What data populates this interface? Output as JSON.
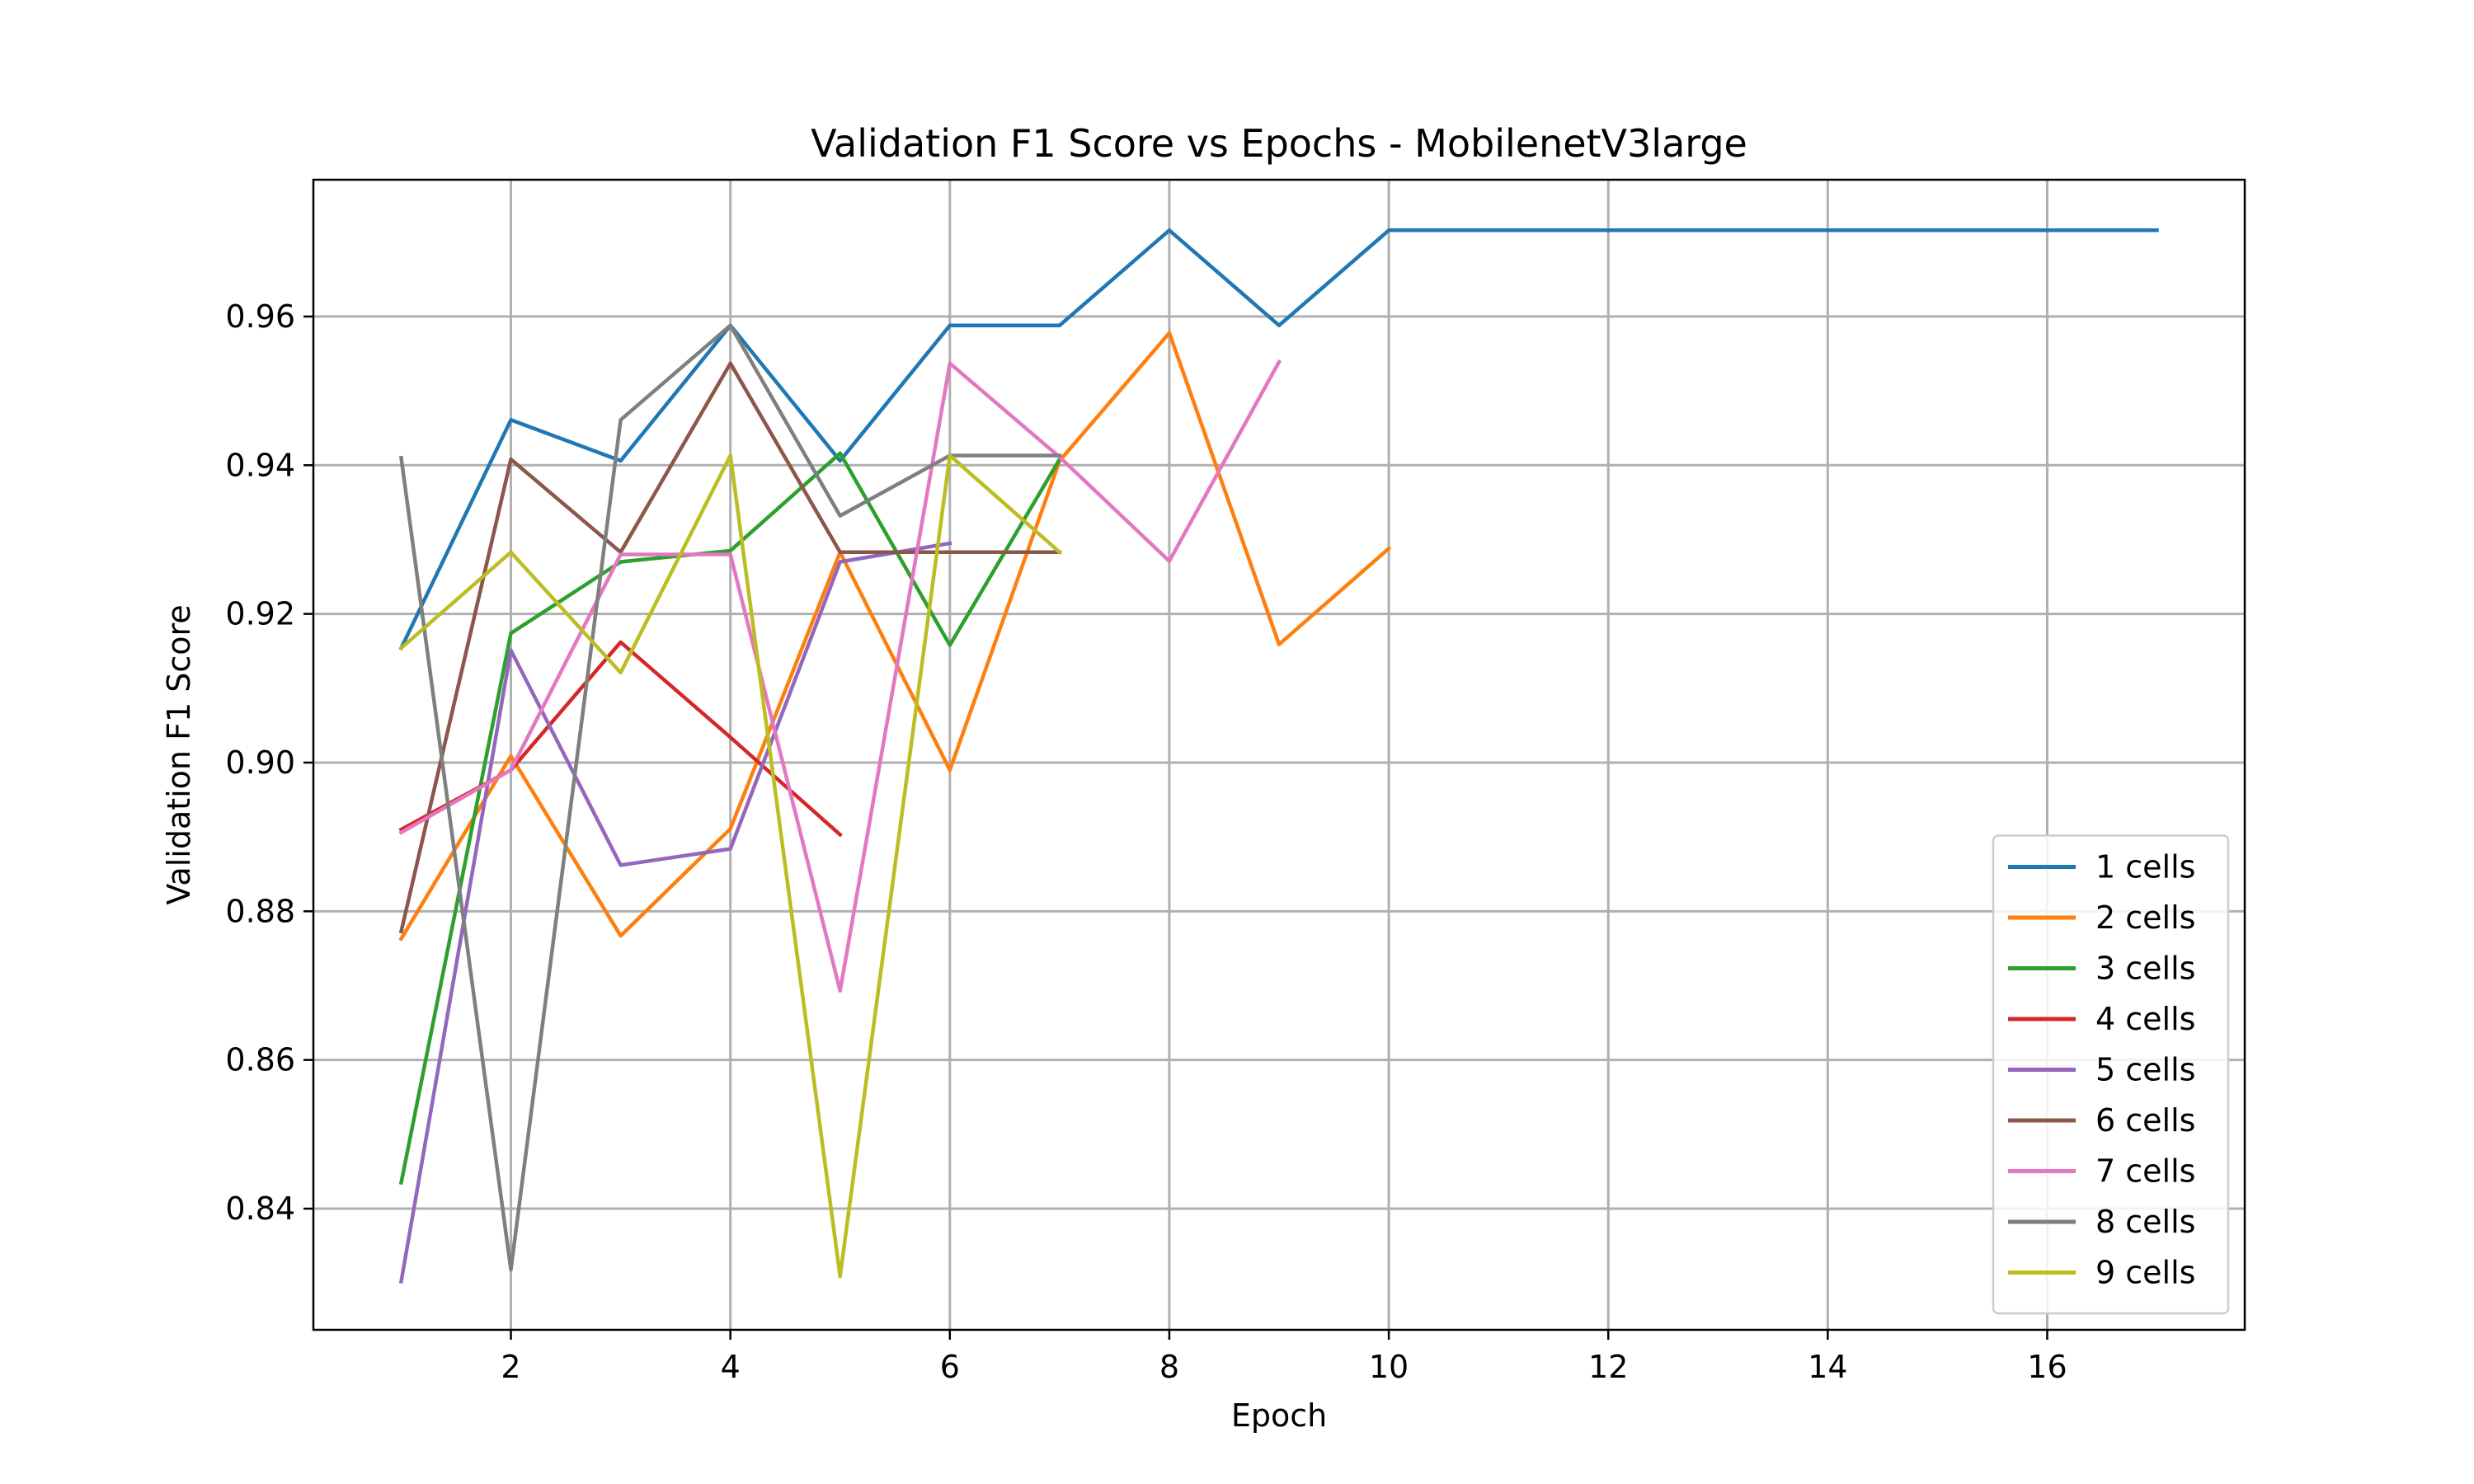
{
  "chart_data": {
    "type": "line",
    "title": "Validation F1 Score vs Epochs - MobilenetV3large",
    "xlabel": "Epoch",
    "ylabel": "Validation F1 Score",
    "xlim": [
      0.2,
      17.8
    ],
    "ylim": [
      0.8237,
      0.9784
    ],
    "xticks": [
      2,
      4,
      6,
      8,
      10,
      12,
      14,
      16
    ],
    "yticks": [
      0.84,
      0.86,
      0.88,
      0.9,
      0.92,
      0.94,
      0.96
    ],
    "grid": true,
    "legend_position": "lower-right",
    "series": [
      {
        "name": "1 cells",
        "color": "#1f77b4",
        "x": [
          1,
          2,
          3,
          4,
          5,
          6,
          7,
          8,
          9,
          10,
          11,
          12,
          13,
          14,
          15,
          16,
          17
        ],
        "y": [
          0.9154,
          0.9461,
          0.9406,
          0.9588,
          0.9406,
          0.9588,
          0.9588,
          0.9716,
          0.9588,
          0.9716,
          0.9716,
          0.9716,
          0.9716,
          0.9716,
          0.9716,
          0.9716,
          0.9716
        ]
      },
      {
        "name": "2 cells",
        "color": "#ff7f0e",
        "x": [
          1,
          2,
          3,
          4,
          5,
          6,
          7,
          8,
          9,
          10
        ],
        "y": [
          0.8763,
          0.9009,
          0.8767,
          0.8911,
          0.9283,
          0.899,
          0.9406,
          0.9578,
          0.9159,
          0.9288
        ]
      },
      {
        "name": "3 cells",
        "color": "#2ca02c",
        "x": [
          1,
          2,
          3,
          4,
          5,
          6,
          7
        ],
        "y": [
          0.8435,
          0.9174,
          0.927,
          0.9285,
          0.9416,
          0.9158,
          0.9408
        ]
      },
      {
        "name": "4 cells",
        "color": "#d62728",
        "x": [
          1,
          2,
          3,
          4,
          5
        ],
        "y": [
          0.891,
          0.899,
          0.9162,
          0.9034,
          0.8903
        ]
      },
      {
        "name": "5 cells",
        "color": "#9467bd",
        "x": [
          1,
          2,
          3,
          4,
          5,
          6
        ],
        "y": [
          0.8302,
          0.9151,
          0.8862,
          0.8884,
          0.927,
          0.9295
        ]
      },
      {
        "name": "6 cells",
        "color": "#8c564b",
        "x": [
          1,
          2,
          3,
          4,
          5,
          6,
          7
        ],
        "y": [
          0.8773,
          0.9408,
          0.9283,
          0.9537,
          0.9283,
          0.9283,
          0.9283
        ]
      },
      {
        "name": "7 cells",
        "color": "#e377c2",
        "x": [
          1,
          2,
          3,
          4,
          5,
          6,
          7,
          8,
          9
        ],
        "y": [
          0.8906,
          0.899,
          0.928,
          0.928,
          0.8693,
          0.9537,
          0.9411,
          0.9271,
          0.9539
        ]
      },
      {
        "name": "8 cells",
        "color": "#7f7f7f",
        "x": [
          1,
          2,
          3,
          4,
          5,
          6,
          7
        ],
        "y": [
          0.941,
          0.8318,
          0.9461,
          0.9588,
          0.9332,
          0.9413,
          0.9413
        ]
      },
      {
        "name": "9 cells",
        "color": "#bcbd22",
        "x": [
          1,
          2,
          3,
          4,
          5,
          6,
          7
        ],
        "y": [
          0.9154,
          0.9283,
          0.9121,
          0.9413,
          0.8309,
          0.9413,
          0.9283
        ]
      }
    ]
  }
}
